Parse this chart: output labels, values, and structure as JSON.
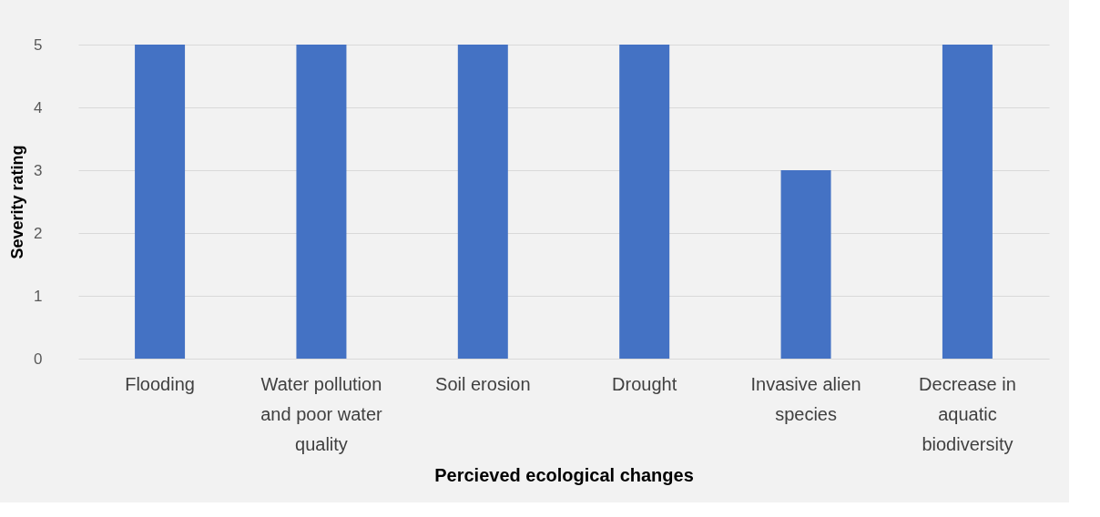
{
  "chart_data": {
    "type": "bar",
    "xlabel": "Percieved ecological changes",
    "ylabel": "Severity rating",
    "categories": [
      "Flooding",
      "Water pollution and poor water quality",
      "Soil erosion",
      "Drought",
      "Invasive alien species",
      "Decrease in aquatic biodiversity"
    ],
    "values": [
      5,
      5,
      5,
      5,
      3,
      5
    ],
    "color": "#4472c4",
    "ylim": [
      0,
      5
    ],
    "yticks": [
      0,
      1,
      2,
      3,
      4,
      5
    ],
    "grid": "y"
  }
}
